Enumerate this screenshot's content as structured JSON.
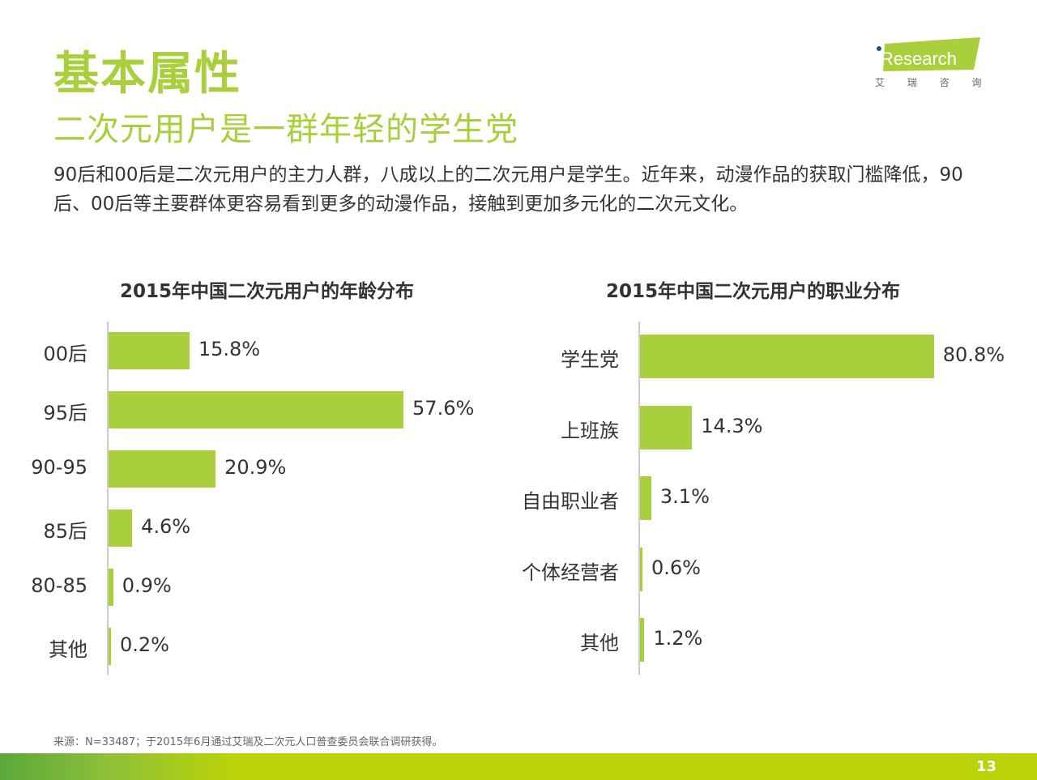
{
  "header": {
    "title": "基本属性",
    "subtitle": "二次元用户是一群年轻的学生党",
    "description": "90后和00后是二次元用户的主力人群，八成以上的二次元用户是学生。近年来，动漫作品的获取门槛降低，90后、00后等主要群体更容易看到更多的动漫作品，接触到更加多元化的二次元文化。"
  },
  "logo": {
    "brand": "iResearch",
    "chinese": "艾 瑞 咨 询"
  },
  "colors": {
    "accent": "#a9cf3c"
  },
  "chart_data": [
    {
      "type": "bar",
      "orientation": "horizontal",
      "title": "2015年中国二次元用户的年龄分布",
      "categories": [
        "00后",
        "95后",
        "90-95",
        "85后",
        "80-85",
        "其他"
      ],
      "values": [
        15.8,
        57.6,
        20.9,
        4.6,
        0.9,
        0.2
      ],
      "labels": [
        "15.8%",
        "57.6%",
        "20.9%",
        "4.6%",
        "0.9%",
        "0.2%"
      ],
      "unit": "%"
    },
    {
      "type": "bar",
      "orientation": "horizontal",
      "title": "2015年中国二次元用户的职业分布",
      "categories": [
        "学生党",
        "上班族",
        "自由职业者",
        "个体经营者",
        "其他"
      ],
      "values": [
        80.8,
        14.3,
        3.1,
        0.6,
        1.2
      ],
      "labels": [
        "80.8%",
        "14.3%",
        "3.1%",
        "0.6%",
        "1.2%"
      ],
      "unit": "%"
    }
  ],
  "footer": {
    "source": "来源：N=33487；于2015年6月通过艾瑞及二次元人口普查委员会联合调研获得。",
    "page_number": "13"
  }
}
